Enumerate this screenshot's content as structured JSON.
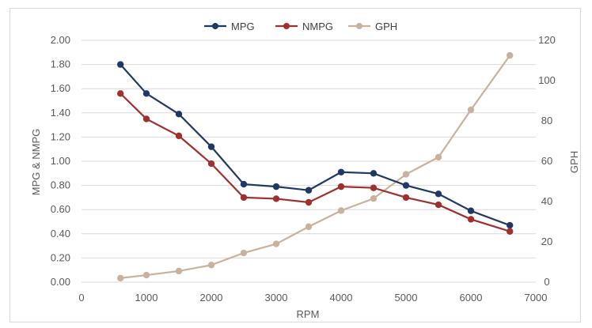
{
  "chart_data": {
    "type": "line",
    "title": "",
    "xlabel": "RPM",
    "ylabel": "MPG & NMPG",
    "y2label": "GPH",
    "xlim": [
      0,
      7000
    ],
    "ylim": [
      0,
      2.0
    ],
    "y2lim": [
      0,
      120
    ],
    "x_ticks": [
      0,
      1000,
      2000,
      3000,
      4000,
      5000,
      6000,
      7000
    ],
    "y_ticks": [
      "0.00",
      "0.20",
      "0.40",
      "0.60",
      "0.80",
      "1.00",
      "1.20",
      "1.40",
      "1.60",
      "1.80",
      "2.00"
    ],
    "y2_ticks": [
      0,
      20,
      40,
      60,
      80,
      100,
      120
    ],
    "grid": true,
    "legend_position": "top",
    "x": [
      600,
      1000,
      1500,
      2000,
      2500,
      3000,
      3500,
      4000,
      4500,
      5000,
      5500,
      6000,
      6600
    ],
    "series": [
      {
        "name": "MPG",
        "axis": "left",
        "color": "#1f3864",
        "values": [
          1.8,
          1.56,
          1.39,
          1.12,
          0.81,
          0.79,
          0.76,
          0.91,
          0.9,
          0.8,
          0.73,
          0.59,
          0.47
        ]
      },
      {
        "name": "NMPG",
        "axis": "left",
        "color": "#a0302d",
        "values": [
          1.56,
          1.35,
          1.21,
          0.98,
          0.7,
          0.69,
          0.66,
          0.79,
          0.78,
          0.7,
          0.64,
          0.52,
          0.42
        ]
      },
      {
        "name": "GPH",
        "axis": "right",
        "color": "#c9b29d",
        "values": [
          2,
          3.5,
          5.5,
          8.5,
          14.5,
          19,
          27.5,
          35.5,
          41.5,
          53.5,
          62,
          85.5,
          112.5
        ]
      }
    ]
  }
}
